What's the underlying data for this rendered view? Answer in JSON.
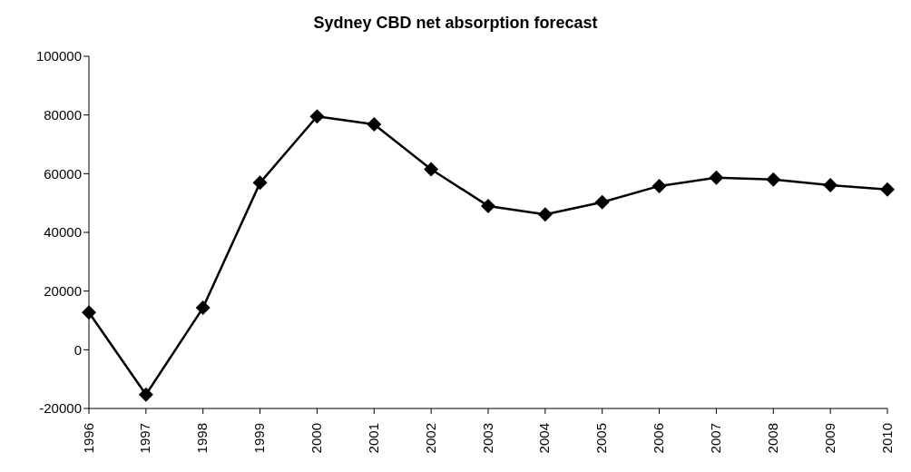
{
  "chart_data": {
    "type": "line",
    "title": "Sydney CBD net absorption forecast",
    "categories": [
      "1996",
      "1997",
      "1998",
      "1999",
      "2000",
      "2001",
      "2002",
      "2003",
      "2004",
      "2005",
      "2006",
      "2007",
      "2008",
      "2009",
      "2010"
    ],
    "series": [
      {
        "color": "#000000",
        "values": [
          12700,
          -15300,
          14300,
          56900,
          79500,
          76800,
          61500,
          49000,
          46100,
          50300,
          55800,
          58600,
          58000,
          56100,
          54600
        ]
      }
    ],
    "ylim": [
      -20000,
      100000
    ],
    "yticks": [
      -20000,
      0,
      20000,
      40000,
      60000,
      80000,
      100000
    ],
    "grid": false,
    "legend": false,
    "marker": "diamond",
    "line_style": "solid"
  }
}
